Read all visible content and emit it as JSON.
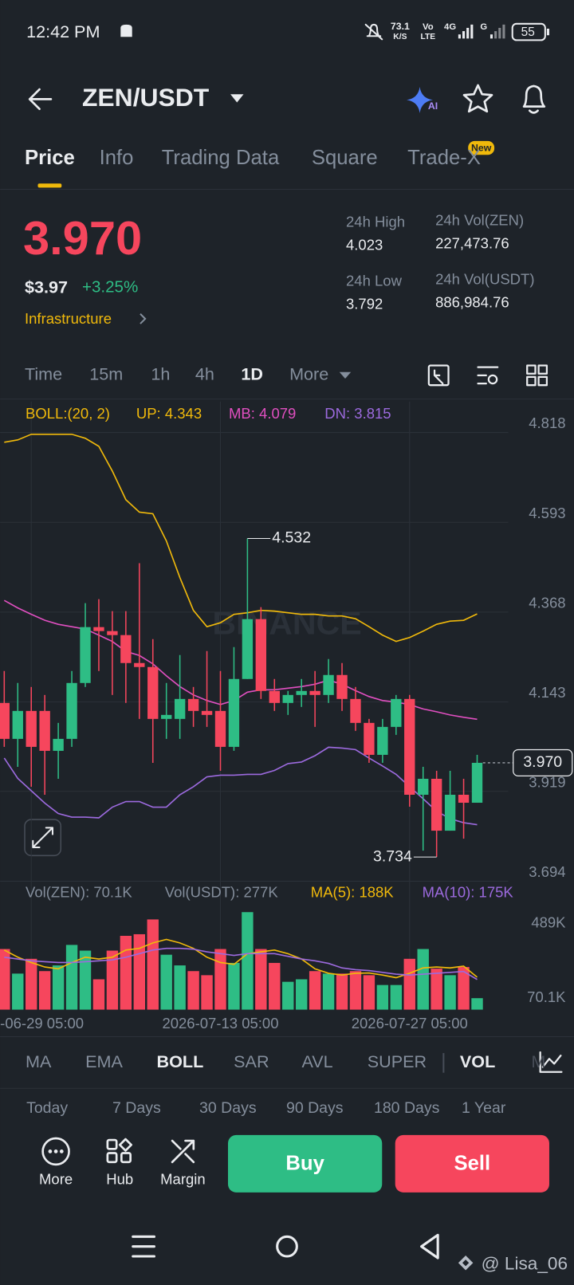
{
  "status_bar": {
    "time": "12:42 PM",
    "net_speed": "73.1",
    "net_unit": "K/S",
    "vo": "Vo",
    "lte": "LTE",
    "g4": "4G",
    "g": "G",
    "battery": "55"
  },
  "header": {
    "pair": "ZEN/USDT"
  },
  "tabs": [
    "Price",
    "Info",
    "Trading Data",
    "Square",
    "Trade-X"
  ],
  "new_badge": "New",
  "price": {
    "last": "3.970",
    "usd": "$3.97",
    "change": "+3.25%",
    "sector": "Infrastructure"
  },
  "stats": [
    {
      "label": "24h High",
      "value": "4.023"
    },
    {
      "label": "24h Vol(ZEN)",
      "value": "227,473.76"
    },
    {
      "label": "24h Low",
      "value": "3.792"
    },
    {
      "label": "24h Vol(USDT)",
      "value": "886,984.76"
    }
  ],
  "timeframes": [
    "Time",
    "15m",
    "1h",
    "4h",
    "1D",
    "More"
  ],
  "chart_data": [
    {
      "type": "candlestick",
      "legend_title": "BOLL:(20, 2)",
      "watermark": "BINANCE",
      "up_color": "#2ebd85",
      "down_color": "#f6465d",
      "open": [
        4.12,
        4.03,
        4.1,
        4.1,
        4.0,
        4.03,
        4.17,
        4.31,
        4.3,
        4.29,
        4.22,
        4.21,
        4.08,
        4.08,
        4.13,
        4.1,
        4.1,
        4.01,
        4.18,
        4.33,
        4.15,
        4.12,
        4.14,
        4.15,
        4.14,
        4.19,
        4.13,
        4.07,
        3.99,
        4.06,
        4.13,
        3.89,
        3.93,
        3.8,
        3.89,
        3.87
      ],
      "high": [
        4.2,
        4.17,
        4.16,
        4.14,
        4.07,
        4.2,
        4.37,
        4.38,
        4.35,
        4.35,
        4.47,
        4.28,
        4.17,
        4.24,
        4.16,
        4.25,
        4.2,
        4.26,
        4.532,
        4.36,
        4.18,
        4.15,
        4.18,
        4.2,
        4.23,
        4.22,
        4.16,
        4.08,
        4.08,
        4.14,
        4.14,
        3.96,
        3.95,
        3.95,
        3.93,
        3.99
      ],
      "low": [
        4.01,
        3.96,
        3.91,
        3.89,
        3.93,
        4.01,
        4.16,
        4.2,
        4.14,
        4.12,
        4.08,
        3.97,
        4.03,
        4.03,
        4.06,
        4.06,
        3.95,
        4.0,
        4.18,
        4.13,
        4.1,
        4.09,
        4.11,
        4.06,
        4.12,
        4.1,
        4.05,
        3.97,
        3.97,
        4.04,
        3.86,
        3.75,
        3.734,
        3.8,
        3.78,
        3.87
      ],
      "close": [
        4.03,
        4.1,
        4.01,
        4.0,
        4.03,
        4.17,
        4.31,
        4.3,
        4.29,
        4.22,
        4.21,
        4.08,
        4.09,
        4.13,
        4.1,
        4.09,
        4.01,
        4.18,
        4.33,
        4.15,
        4.12,
        4.14,
        4.15,
        4.14,
        4.19,
        4.13,
        4.07,
        3.99,
        4.06,
        4.13,
        3.89,
        3.93,
        3.8,
        3.89,
        3.87,
        3.97
      ],
      "last_price_label": "3.970",
      "series": [
        {
          "name": "UP: 4.343",
          "color": "#f0b90b",
          "values": [
            4.773,
            4.779,
            4.793,
            4.793,
            4.793,
            4.793,
            4.783,
            4.763,
            4.701,
            4.629,
            4.598,
            4.594,
            4.526,
            4.434,
            4.352,
            4.311,
            4.321,
            4.342,
            4.346,
            4.352,
            4.35,
            4.346,
            4.342,
            4.342,
            4.338,
            4.338,
            4.331,
            4.311,
            4.29,
            4.274,
            4.284,
            4.3,
            4.317,
            4.325,
            4.327,
            4.343
          ]
        },
        {
          "name": "MB: 4.079",
          "color": "#e04fc0",
          "values": [
            4.377,
            4.358,
            4.342,
            4.327,
            4.317,
            4.311,
            4.305,
            4.29,
            4.274,
            4.249,
            4.239,
            4.218,
            4.188,
            4.161,
            4.14,
            4.126,
            4.116,
            4.126,
            4.147,
            4.153,
            4.153,
            4.157,
            4.161,
            4.167,
            4.177,
            4.167,
            4.151,
            4.136,
            4.126,
            4.122,
            4.116,
            4.105,
            4.098,
            4.09,
            4.084,
            4.079
          ]
        },
        {
          "name": "DN: 3.815",
          "color": "#9c6ade",
          "values": [
            3.982,
            3.931,
            3.9,
            3.869,
            3.843,
            3.834,
            3.834,
            3.832,
            3.859,
            3.873,
            3.873,
            3.859,
            3.859,
            3.89,
            3.91,
            3.935,
            3.939,
            3.939,
            3.941,
            3.941,
            3.951,
            3.968,
            3.972,
            3.988,
            4.009,
            4.007,
            4.003,
            3.982,
            3.962,
            3.941,
            3.91,
            3.88,
            3.849,
            3.83,
            3.82,
            3.815
          ]
        }
      ],
      "ylim": [
        3.674,
        4.875
      ],
      "yticks": [
        4.818,
        4.593,
        4.368,
        4.143,
        3.919,
        3.694
      ],
      "grid": true
    },
    {
      "type": "bar",
      "value_legend": [
        "Vol(ZEN): 70.1K",
        "Vol(USDT): 277K"
      ],
      "categories": [
        null,
        null,
        "-06-29 05:00",
        null,
        null,
        null,
        null,
        null,
        null,
        null,
        null,
        null,
        null,
        null,
        null,
        null,
        "2026-07-13 05:00",
        null,
        null,
        null,
        null,
        null,
        null,
        null,
        null,
        null,
        null,
        null,
        null,
        null,
        "2026-07-27 05:00",
        null,
        null,
        null,
        null,
        null
      ],
      "values": [
        346,
        208,
        291,
        222,
        254,
        369,
        337,
        176,
        337,
        420,
        429,
        512,
        314,
        254,
        222,
        199,
        346,
        268,
        553,
        346,
        268,
        162,
        176,
        222,
        208,
        208,
        222,
        199,
        144,
        144,
        291,
        346,
        236,
        199,
        245,
        70.1
      ],
      "series": [
        {
          "name": "MA(5): 188K",
          "color": "#f0b90b",
          "values": [
            340,
            300,
            270,
            245,
            235,
            270,
            300,
            290,
            300,
            340,
            350,
            380,
            400,
            380,
            350,
            300,
            270,
            260,
            320,
            330,
            340,
            320,
            290,
            235,
            210,
            200,
            210,
            212,
            200,
            185,
            210,
            240,
            245,
            240,
            250,
            188
          ]
        },
        {
          "name": "MA(10): 175K",
          "color": "#9c6ade",
          "values": [
            300,
            290,
            280,
            275,
            270,
            270,
            275,
            280,
            285,
            300,
            320,
            340,
            350,
            350,
            345,
            330,
            320,
            310,
            320,
            320,
            320,
            305,
            290,
            280,
            265,
            240,
            230,
            225,
            215,
            205,
            200,
            205,
            210,
            215,
            220,
            175
          ]
        }
      ],
      "ylim": [
        5.7,
        560
      ],
      "yticks": [
        {
          "value": 489,
          "label": "489K"
        },
        {
          "value": 70.1,
          "label": "70.1K"
        }
      ]
    }
  ],
  "indicators": [
    "MA",
    "EMA",
    "BOLL",
    "SAR",
    "AVL",
    "SUPER",
    "VOL",
    "M"
  ],
  "periods": [
    "Today",
    "7 Days",
    "30 Days",
    "90 Days",
    "180 Days",
    "1 Year"
  ],
  "actions": [
    "More",
    "Hub",
    "Margin"
  ],
  "buttons": {
    "buy": "Buy",
    "sell": "Sell"
  },
  "watermark_user": "@ Lisa_06"
}
